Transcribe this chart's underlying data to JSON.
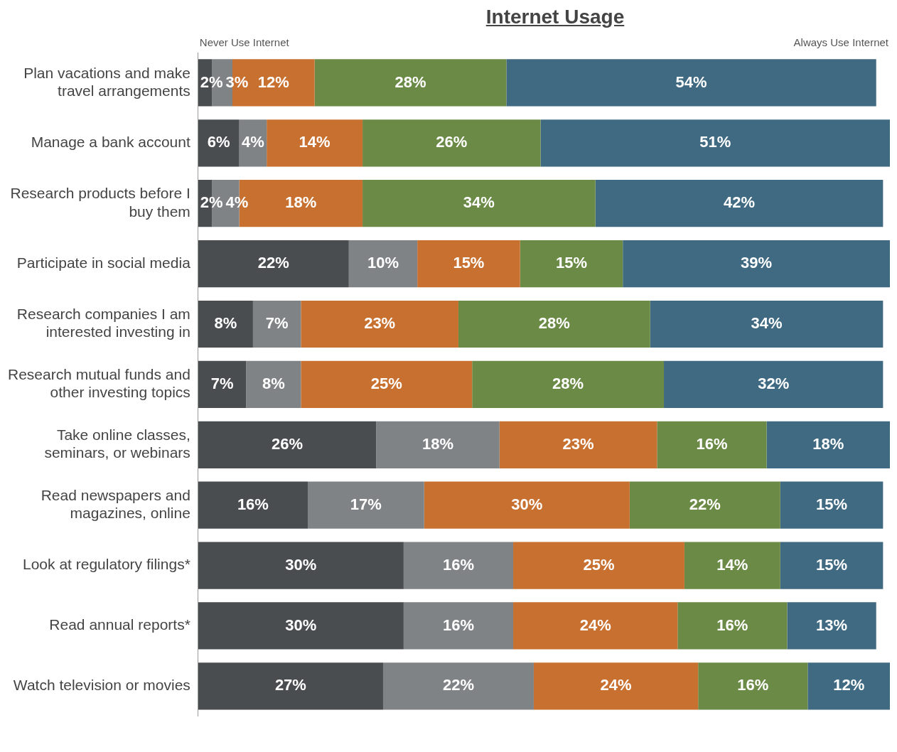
{
  "chart_data": {
    "type": "bar",
    "orientation": "horizontal",
    "stacked": true,
    "title": "Internet Usage",
    "legend": false,
    "annotations": [
      "Never Use Internet",
      "Always Use Internet"
    ],
    "categories": [
      "Plan vacations and make travel arrangements",
      "Manage a bank account",
      "Research products before I buy them",
      "Participate in social media",
      "Research companies I am interested investing in",
      "Research mutual funds and other investing topics",
      "Take online classes, seminars, or webinars",
      "Read newspapers and magazines, online",
      "Look at regulatory filings*",
      "Read annual reports*",
      "Watch television or movies"
    ],
    "series": [
      {
        "color": "#4a4d50",
        "values": [
          2,
          6,
          2,
          22,
          8,
          7,
          26,
          16,
          30,
          30,
          27
        ],
        "value_labels": [
          "2%",
          "6%",
          "2%",
          "22%",
          "8%",
          "7%",
          "26%",
          "16%",
          "30%",
          "30%",
          "27%"
        ]
      },
      {
        "color": "#808386",
        "values": [
          3,
          4,
          4,
          10,
          7,
          8,
          18,
          17,
          16,
          16,
          22
        ],
        "value_labels": [
          "3%",
          "4%",
          "4%",
          "10%",
          "7%",
          "8%",
          "18%",
          "17%",
          "16%",
          "16%",
          "22%"
        ]
      },
      {
        "color": "#c8702f",
        "values": [
          12,
          14,
          18,
          15,
          23,
          25,
          23,
          30,
          25,
          24,
          24
        ],
        "value_labels": [
          "12%",
          "14%",
          "18%",
          "15%",
          "23%",
          "25%",
          "23%",
          "30%",
          "25%",
          "24%",
          "24%"
        ]
      },
      {
        "color": "#6b8a46",
        "values": [
          28,
          26,
          34,
          15,
          28,
          28,
          16,
          22,
          14,
          16,
          16
        ],
        "value_labels": [
          "28%",
          "26%",
          "34%",
          "15%",
          "28%",
          "28%",
          "16%",
          "22%",
          "14%",
          "16%",
          "16%"
        ]
      },
      {
        "color": "#3f6a82",
        "values": [
          54,
          51,
          42,
          39,
          34,
          32,
          18,
          15,
          15,
          13,
          12
        ],
        "value_labels": [
          "54%",
          "51%",
          "42%",
          "39%",
          "34%",
          "32%",
          "18%",
          "15%",
          "15%",
          "13%",
          "12%"
        ]
      }
    ]
  }
}
